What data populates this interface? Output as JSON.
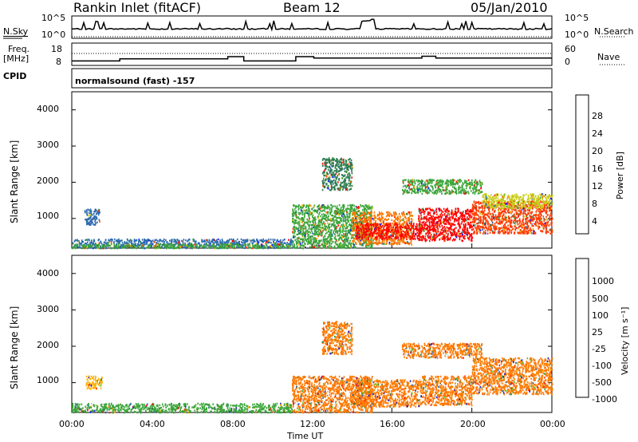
{
  "header": {
    "station": "Rankin Inlet (fitACF)",
    "beam": "Beam 12",
    "date": "05/Jan/2010",
    "cpid_text": "normalsound (fast) -157"
  },
  "left_labels": {
    "nsky": "N.Sky",
    "freq": "Freq.",
    "freq_unit": "[MHz]",
    "cpid": "CPID"
  },
  "right_labels": {
    "nsearch": "N.Search",
    "nave": "Nave"
  },
  "chart_data": [
    {
      "id": "noise",
      "type": "line",
      "left_ticks": [
        "10^5",
        "10^0"
      ],
      "right_ticks": [
        "10^5",
        "10^0"
      ],
      "series": [
        {
          "name": "N.Sky",
          "style": "solid"
        },
        {
          "name": "N.Search",
          "style": "dotted"
        }
      ]
    },
    {
      "id": "freq",
      "type": "line",
      "left_ticks": [
        "18",
        "8"
      ],
      "right_ticks": [
        "60",
        "0"
      ],
      "series": [
        {
          "name": "Freq.",
          "style": "solid",
          "x": [
            0,
            2.1,
            2.4,
            7.6,
            7.8,
            8.6,
            11.2,
            12.1,
            17.4,
            17.5,
            18.2,
            24
          ],
          "y": [
            10,
            10,
            11.5,
            11.5,
            13,
            10,
            13,
            12,
            12,
            13.3,
            12,
            12
          ]
        },
        {
          "name": "Nave",
          "style": "dotted",
          "value": 40
        }
      ]
    },
    {
      "id": "power",
      "type": "heatmap",
      "ylabel": "Slant Range [km]",
      "yticks": [
        1000,
        2000,
        3000,
        4000
      ],
      "ylim": [
        180,
        4500
      ],
      "xlim": [
        0,
        24
      ],
      "colorbar": {
        "label": "Power [dB]",
        "ticks": [
          "28",
          "24",
          "20",
          "16",
          "12",
          "8",
          "4"
        ],
        "colors": [
          "#ff0000",
          "#ff3b00",
          "#ff7800",
          "#ffb000",
          "#c9cc1a",
          "#3aa53a",
          "#2a7a50",
          "#2a6ab0",
          "#1020ff"
        ]
      },
      "regions": [
        {
          "t0": 0.6,
          "t1": 1.4,
          "r0": 850,
          "r1": 1300,
          "color": "#2a6ab0"
        },
        {
          "t0": 0,
          "t1": 11,
          "r0": 200,
          "r1": 450,
          "color": "#2a6ab0"
        },
        {
          "t0": 0,
          "t1": 11,
          "r0": 200,
          "r1": 320,
          "color": "#3aa53a"
        },
        {
          "t0": 11,
          "t1": 15,
          "r0": 200,
          "r1": 1400,
          "color": "#3aa53a"
        },
        {
          "t0": 12.5,
          "t1": 14,
          "r0": 1800,
          "r1": 2700,
          "color": "#2a7a50"
        },
        {
          "t0": 14,
          "t1": 17,
          "r0": 300,
          "r1": 1200,
          "color": "#ff7800"
        },
        {
          "t0": 14.2,
          "t1": 17.5,
          "r0": 450,
          "r1": 900,
          "color": "#ff0000"
        },
        {
          "t0": 17.3,
          "t1": 20,
          "r0": 400,
          "r1": 1300,
          "color": "#ff0000"
        },
        {
          "t0": 20,
          "t1": 24,
          "r0": 600,
          "r1": 1500,
          "color": "#ff3b00"
        },
        {
          "t0": 16.5,
          "t1": 20.5,
          "r0": 1700,
          "r1": 2100,
          "color": "#3aa53a"
        },
        {
          "t0": 20.5,
          "t1": 24,
          "r0": 1300,
          "r1": 1700,
          "color": "#c9cc1a"
        }
      ]
    },
    {
      "id": "velocity",
      "type": "heatmap",
      "ylabel": "Slant Range [km]",
      "yticks": [
        1000,
        2000,
        3000,
        4000
      ],
      "ylim": [
        180,
        4500
      ],
      "xlim": [
        0,
        24
      ],
      "xticks": [
        "00:00",
        "04:00",
        "08:00",
        "12:00",
        "16:00",
        "20:00",
        "00:00"
      ],
      "xlabel": "Time UT",
      "colorbar": {
        "label": "Velocity [m s⁻¹]",
        "ticks": [
          "1000",
          "500",
          "100",
          "25",
          "-25",
          "-100",
          "-500",
          "-1000"
        ],
        "colors": [
          "#2020c8",
          "#2a6ab0",
          "#2a7a50",
          "#3aa53a",
          "#60cc30",
          "#c8c8c8",
          "#ffb000",
          "#ff7800",
          "#ff3b00",
          "#ff0000"
        ]
      },
      "regions": [
        {
          "t0": 0.7,
          "t1": 1.5,
          "r0": 850,
          "r1": 1200,
          "color": "#ffb000"
        },
        {
          "t0": 0,
          "t1": 11,
          "r0": 200,
          "r1": 450,
          "color": "#3aa53a"
        },
        {
          "t0": 11,
          "t1": 15,
          "r0": 200,
          "r1": 1200,
          "color": "#ff7800"
        },
        {
          "t0": 12.5,
          "t1": 14,
          "r0": 1800,
          "r1": 2700,
          "color": "#ff7800"
        },
        {
          "t0": 14,
          "t1": 17.5,
          "r0": 350,
          "r1": 1100,
          "color": "#ff7800"
        },
        {
          "t0": 17.5,
          "t1": 20,
          "r0": 400,
          "r1": 1200,
          "color": "#ff7800"
        },
        {
          "t0": 20,
          "t1": 24,
          "r0": 700,
          "r1": 1700,
          "color": "#ff7800"
        },
        {
          "t0": 16.5,
          "t1": 20.5,
          "r0": 1700,
          "r1": 2100,
          "color": "#ff7800"
        }
      ]
    }
  ]
}
